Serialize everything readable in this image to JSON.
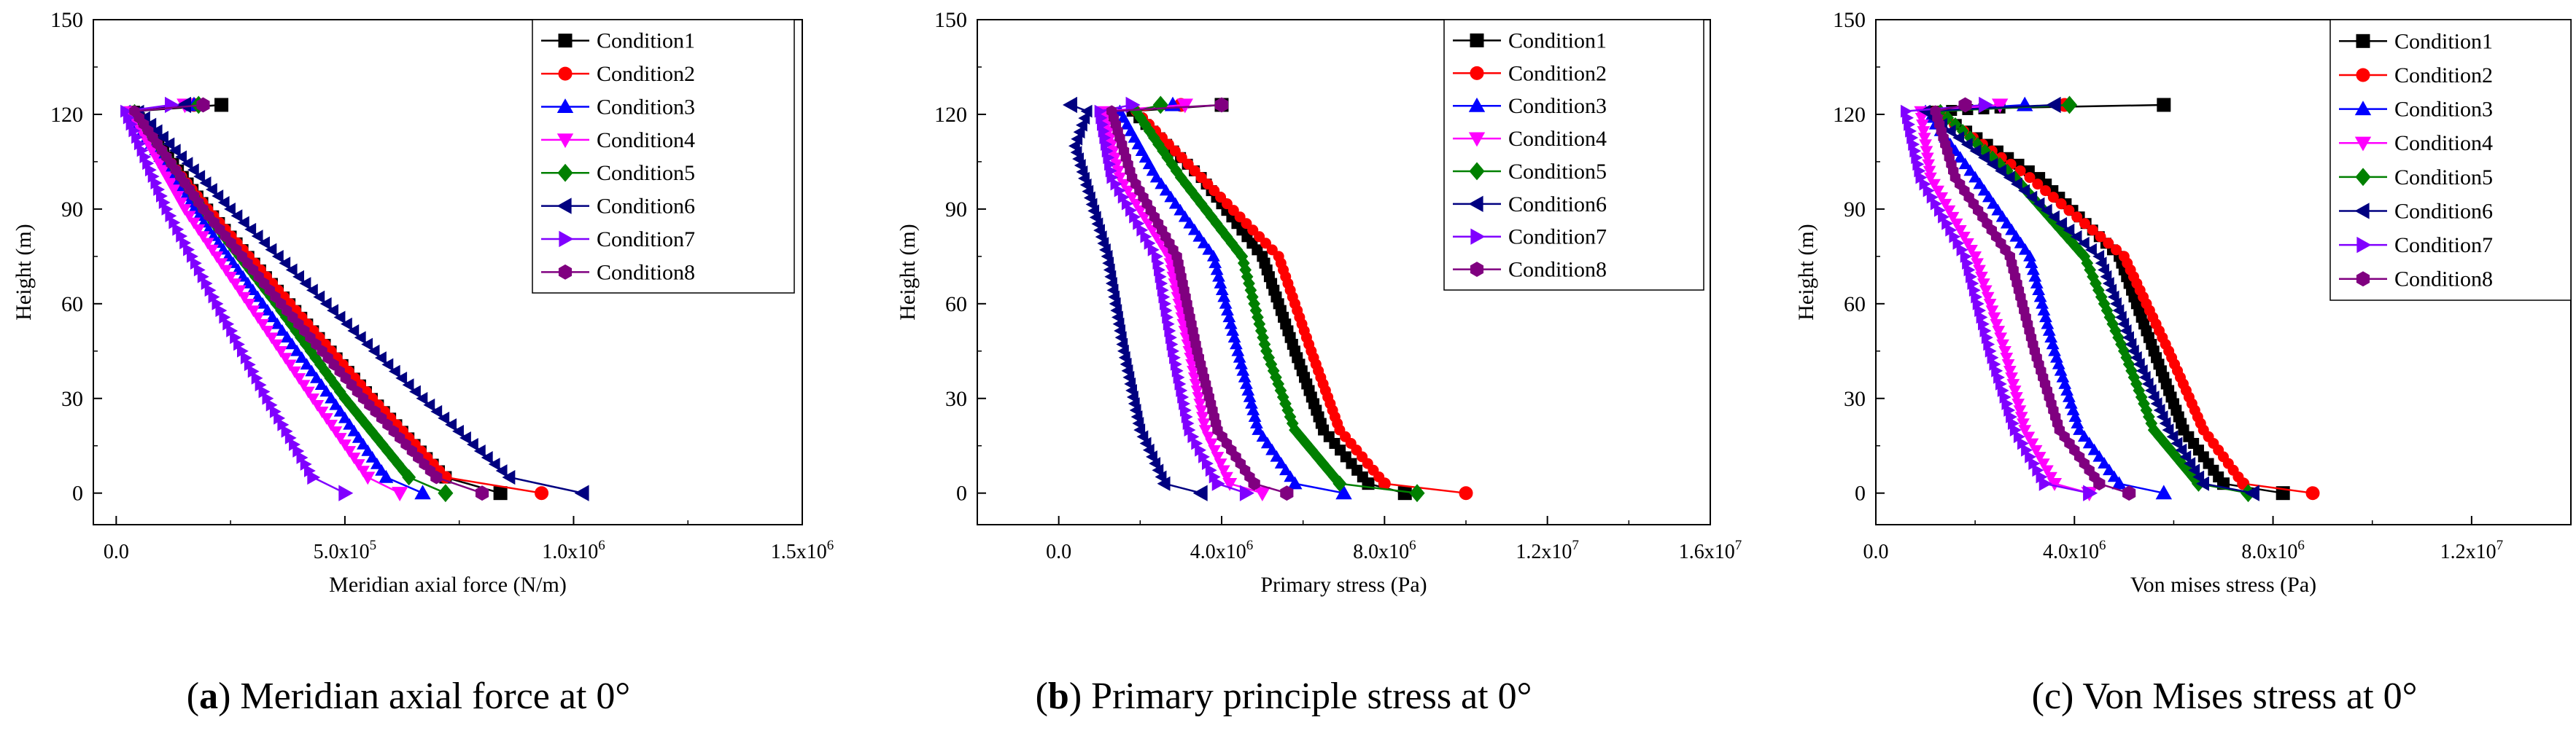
{
  "charts_common": {
    "ylabel": "Height (m)",
    "series_names": [
      "Condition1",
      "Condition2",
      "Condition3",
      "Condition4",
      "Condition5",
      "Condition6",
      "Condition7",
      "Condition8"
    ],
    "series_colors": [
      "#000000",
      "#ff0000",
      "#0000ff",
      "#ff00ff",
      "#008000",
      "#000080",
      "#8000ff",
      "#800080"
    ],
    "series_markers": [
      "square",
      "circle",
      "triangle-up",
      "triangle-down",
      "diamond",
      "triangle-left",
      "triangle-right",
      "hexagon"
    ]
  },
  "chart_data": [
    {
      "type": "line",
      "caption_letter": "a",
      "caption_rest": " Meridian axial force at 0°",
      "xlabel": "Meridian axial force (N/m)",
      "ylabel": "Height (m)",
      "xlim": [
        -0.05,
        1.5
      ],
      "ylim": [
        -10,
        150
      ],
      "x_ticks": [
        0.0,
        0.5,
        1.0,
        1.5
      ],
      "x_tick_labels": [
        "0.0",
        "5.0x10^5",
        "1.0x10^6",
        "1.5x10^6"
      ],
      "y_ticks": [
        0,
        30,
        60,
        90,
        120,
        150
      ],
      "y_tick_labels": [
        "0",
        "30",
        "60",
        "90",
        "120",
        "150"
      ],
      "x_unit_note": "x values in units of 10^6 N/m",
      "grid": false,
      "legend_position": "top-right",
      "series": [
        {
          "name": "Condition1",
          "points": [
            [
              0.23,
              123
            ],
            [
              0.04,
              121
            ],
            [
              0.2,
              90
            ],
            [
              0.38,
              60
            ],
            [
              0.56,
              30
            ],
            [
              0.72,
              5
            ],
            [
              0.84,
              0
            ]
          ]
        },
        {
          "name": "Condition2",
          "points": [
            [
              0.17,
              123
            ],
            [
              0.03,
              121
            ],
            [
              0.2,
              90
            ],
            [
              0.38,
              60
            ],
            [
              0.56,
              30
            ],
            [
              0.72,
              5
            ],
            [
              0.93,
              0
            ]
          ]
        },
        {
          "name": "Condition3",
          "points": [
            [
              0.17,
              123
            ],
            [
              0.03,
              121
            ],
            [
              0.17,
              90
            ],
            [
              0.32,
              60
            ],
            [
              0.47,
              30
            ],
            [
              0.59,
              5
            ],
            [
              0.67,
              0
            ]
          ]
        },
        {
          "name": "Condition4",
          "points": [
            [
              0.15,
              123
            ],
            [
              0.03,
              121
            ],
            [
              0.15,
              90
            ],
            [
              0.29,
              60
            ],
            [
              0.43,
              30
            ],
            [
              0.55,
              5
            ],
            [
              0.62,
              0
            ]
          ]
        },
        {
          "name": "Condition5",
          "points": [
            [
              0.18,
              123
            ],
            [
              0.04,
              121
            ],
            [
              0.19,
              90
            ],
            [
              0.35,
              60
            ],
            [
              0.5,
              30
            ],
            [
              0.64,
              5
            ],
            [
              0.72,
              0
            ]
          ]
        },
        {
          "name": "Condition6",
          "points": [
            [
              0.15,
              123
            ],
            [
              0.05,
              121
            ],
            [
              0.25,
              90
            ],
            [
              0.46,
              60
            ],
            [
              0.67,
              30
            ],
            [
              0.86,
              5
            ],
            [
              1.02,
              0
            ]
          ]
        },
        {
          "name": "Condition7",
          "points": [
            [
              0.12,
              123
            ],
            [
              0.02,
              121
            ],
            [
              0.11,
              90
            ],
            [
              0.22,
              60
            ],
            [
              0.33,
              30
            ],
            [
              0.43,
              5
            ],
            [
              0.5,
              0
            ]
          ]
        },
        {
          "name": "Condition8",
          "points": [
            [
              0.19,
              123
            ],
            [
              0.04,
              121
            ],
            [
              0.19,
              90
            ],
            [
              0.36,
              60
            ],
            [
              0.54,
              30
            ],
            [
              0.7,
              5
            ],
            [
              0.8,
              0
            ]
          ]
        }
      ]
    },
    {
      "type": "line",
      "caption_letter": "b",
      "caption_rest": " Primary principle stress at 0°",
      "xlabel": "Primary stress (Pa)",
      "ylabel": "Height (m)",
      "xlim": [
        -2.0,
        16.0
      ],
      "ylim": [
        -10,
        150
      ],
      "x_ticks": [
        0,
        4,
        8,
        12,
        16
      ],
      "x_tick_labels": [
        "0.0",
        "4.0x10^6",
        "8.0x10^6",
        "1.2x10^7",
        "1.6x10^7"
      ],
      "y_ticks": [
        0,
        30,
        60,
        90,
        120,
        150
      ],
      "y_tick_labels": [
        "0",
        "30",
        "60",
        "90",
        "120",
        "150"
      ],
      "x_unit_note": "x values in units of 10^6 Pa",
      "grid": false,
      "legend_position": "top-right",
      "series": [
        {
          "name": "Condition1",
          "points": [
            [
              4.0,
              123
            ],
            [
              1.8,
              121
            ],
            [
              3.5,
              100
            ],
            [
              5.0,
              75
            ],
            [
              5.8,
              45
            ],
            [
              6.5,
              20
            ],
            [
              7.6,
              3
            ],
            [
              8.5,
              0
            ]
          ]
        },
        {
          "name": "Condition2",
          "points": [
            [
              3.0,
              123
            ],
            [
              1.9,
              121
            ],
            [
              3.5,
              100
            ],
            [
              5.4,
              75
            ],
            [
              6.2,
              45
            ],
            [
              6.9,
              20
            ],
            [
              8.0,
              3
            ],
            [
              10.0,
              0
            ]
          ]
        },
        {
          "name": "Condition3",
          "points": [
            [
              2.8,
              123
            ],
            [
              1.5,
              121
            ],
            [
              2.4,
              100
            ],
            [
              3.8,
              75
            ],
            [
              4.4,
              45
            ],
            [
              4.9,
              20
            ],
            [
              5.8,
              3
            ],
            [
              7.0,
              0
            ]
          ]
        },
        {
          "name": "Condition4",
          "points": [
            [
              3.1,
              123
            ],
            [
              1.1,
              121
            ],
            [
              1.5,
              100
            ],
            [
              2.7,
              75
            ],
            [
              3.2,
              45
            ],
            [
              3.6,
              20
            ],
            [
              4.2,
              3
            ],
            [
              5.0,
              0
            ]
          ]
        },
        {
          "name": "Condition5",
          "points": [
            [
              2.5,
              123
            ],
            [
              1.9,
              121
            ],
            [
              3.0,
              100
            ],
            [
              4.5,
              75
            ],
            [
              5.1,
              45
            ],
            [
              5.8,
              20
            ],
            [
              6.9,
              3
            ],
            [
              8.8,
              0
            ]
          ]
        },
        {
          "name": "Condition6",
          "points": [
            [
              0.3,
              123
            ],
            [
              0.7,
              121
            ],
            [
              0.4,
              110
            ],
            [
              1.2,
              75
            ],
            [
              1.6,
              45
            ],
            [
              2.0,
              20
            ],
            [
              2.6,
              3
            ],
            [
              3.5,
              0
            ]
          ]
        },
        {
          "name": "Condition7",
          "points": [
            [
              1.8,
              123
            ],
            [
              1.0,
              121
            ],
            [
              1.3,
              100
            ],
            [
              2.4,
              75
            ],
            [
              2.8,
              45
            ],
            [
              3.2,
              20
            ],
            [
              3.9,
              3
            ],
            [
              4.6,
              0
            ]
          ]
        },
        {
          "name": "Condition8",
          "points": [
            [
              4.0,
              123
            ],
            [
              1.3,
              121
            ],
            [
              1.8,
              100
            ],
            [
              2.9,
              75
            ],
            [
              3.4,
              45
            ],
            [
              3.9,
              20
            ],
            [
              4.8,
              3
            ],
            [
              5.6,
              0
            ]
          ]
        }
      ]
    },
    {
      "type": "line",
      "caption_letter": "",
      "caption_rest": "(c) Von Mises stress at 0°",
      "xlabel": "Von mises stress (Pa)",
      "ylabel": "Height (m)",
      "xlim": [
        0.0,
        14.0
      ],
      "ylim": [
        -10,
        150
      ],
      "x_ticks": [
        0,
        4,
        8,
        12
      ],
      "x_tick_labels": [
        "0.0",
        "4.0x10^6",
        "8.0x10^6",
        "1.2x10^7"
      ],
      "y_ticks": [
        0,
        30,
        60,
        90,
        120,
        150
      ],
      "y_tick_labels": [
        "0",
        "30",
        "60",
        "90",
        "120",
        "150"
      ],
      "x_unit_note": "x values in units of 10^6 Pa",
      "grid": false,
      "legend_position": "top-right",
      "series": [
        {
          "name": "Condition1",
          "points": [
            [
              5.8,
              123
            ],
            [
              2.5,
              122
            ],
            [
              1.2,
              121
            ],
            [
              3.3,
              100
            ],
            [
              4.9,
              75
            ],
            [
              5.6,
              45
            ],
            [
              6.2,
              20
            ],
            [
              7.0,
              3
            ],
            [
              8.2,
              0
            ]
          ]
        },
        {
          "name": "Condition2",
          "points": [
            [
              3.8,
              123
            ],
            [
              1.2,
              121
            ],
            [
              3.1,
              100
            ],
            [
              5.0,
              75
            ],
            [
              5.9,
              45
            ],
            [
              6.6,
              20
            ],
            [
              7.4,
              3
            ],
            [
              8.8,
              0
            ]
          ]
        },
        {
          "name": "Condition3",
          "points": [
            [
              3.0,
              123
            ],
            [
              1.0,
              121
            ],
            [
              2.0,
              100
            ],
            [
              3.1,
              75
            ],
            [
              3.6,
              45
            ],
            [
              4.1,
              20
            ],
            [
              4.9,
              3
            ],
            [
              5.8,
              0
            ]
          ]
        },
        {
          "name": "Condition4",
          "points": [
            [
              2.5,
              123
            ],
            [
              0.9,
              121
            ],
            [
              1.1,
              100
            ],
            [
              2.0,
              75
            ],
            [
              2.6,
              45
            ],
            [
              3.0,
              20
            ],
            [
              3.6,
              3
            ],
            [
              4.3,
              0
            ]
          ]
        },
        {
          "name": "Condition5",
          "points": [
            [
              3.9,
              123
            ],
            [
              1.3,
              121
            ],
            [
              2.8,
              100
            ],
            [
              4.2,
              75
            ],
            [
              5.0,
              45
            ],
            [
              5.6,
              20
            ],
            [
              6.5,
              3
            ],
            [
              7.5,
              0
            ]
          ]
        },
        {
          "name": "Condition6",
          "points": [
            [
              3.6,
              123
            ],
            [
              1.0,
              121
            ],
            [
              2.7,
              100
            ],
            [
              4.5,
              75
            ],
            [
              5.2,
              45
            ],
            [
              5.9,
              20
            ],
            [
              6.6,
              3
            ],
            [
              7.6,
              0
            ]
          ]
        },
        {
          "name": "Condition7",
          "points": [
            [
              2.2,
              123
            ],
            [
              0.6,
              121
            ],
            [
              0.9,
              100
            ],
            [
              1.8,
              75
            ],
            [
              2.3,
              45
            ],
            [
              2.8,
              20
            ],
            [
              3.4,
              3
            ],
            [
              4.3,
              0
            ]
          ]
        },
        {
          "name": "Condition8",
          "points": [
            [
              1.8,
              123
            ],
            [
              1.2,
              121
            ],
            [
              1.6,
              100
            ],
            [
              2.7,
              75
            ],
            [
              3.2,
              45
            ],
            [
              3.7,
              20
            ],
            [
              4.5,
              3
            ],
            [
              5.1,
              0
            ]
          ]
        }
      ]
    }
  ]
}
